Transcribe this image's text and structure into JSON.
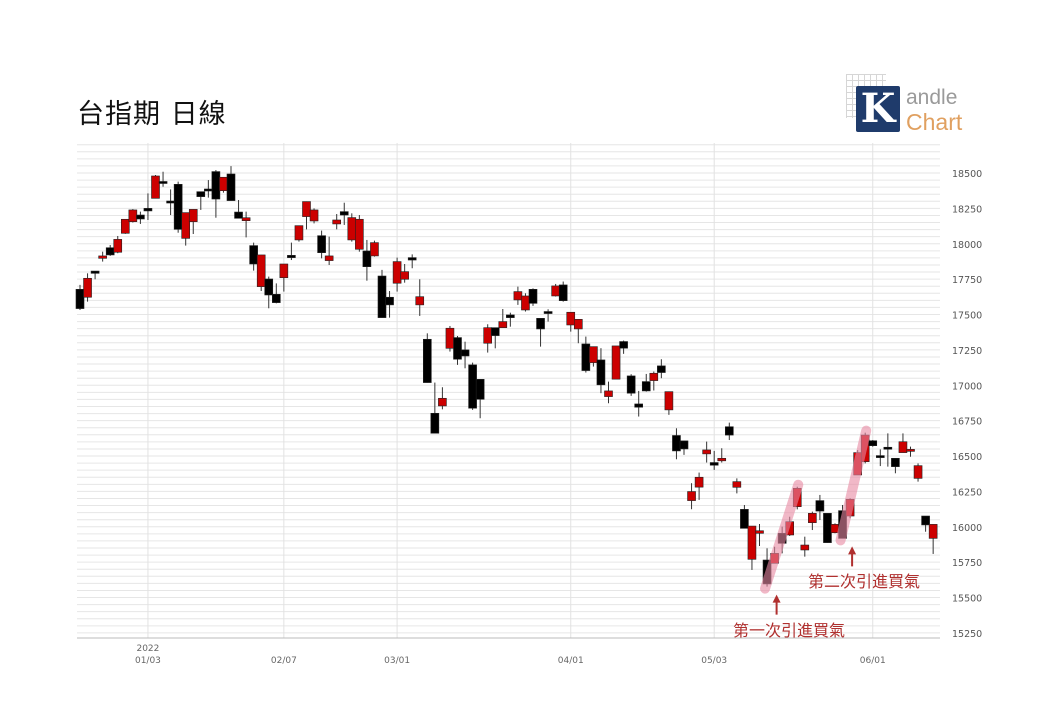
{
  "title": "台指期 日線",
  "logo": {
    "mark": "K",
    "line1": "andle",
    "line2": "Chart"
  },
  "colors": {
    "up": "#cc0000",
    "down": "#000000",
    "grid": "#e6e6e6",
    "annotation": "#b0302f",
    "highlight": "#e889a3"
  },
  "chart_data": {
    "type": "candlestick",
    "ylim": [
      15214,
      18712
    ],
    "yticks": [
      15250,
      15500,
      15750,
      16000,
      16250,
      16500,
      16750,
      17000,
      17250,
      17500,
      17750,
      18000,
      18250,
      18500
    ],
    "minor_grid_step": 50,
    "grid": true,
    "xticks": [
      {
        "index": 9,
        "year": "2022",
        "label": "01/03"
      },
      {
        "index": 27,
        "year": "",
        "label": "02/07"
      },
      {
        "index": 42,
        "year": "",
        "label": "03/01"
      },
      {
        "index": 65,
        "year": "",
        "label": "04/01"
      },
      {
        "index": 84,
        "year": "",
        "label": "05/03"
      },
      {
        "index": 105,
        "year": "",
        "label": "06/01"
      }
    ],
    "ohlc": [
      [
        17678,
        17709,
        17532,
        17542
      ],
      [
        17622,
        17791,
        17591,
        17756
      ],
      [
        17807,
        17807,
        17749,
        17791
      ],
      [
        17897,
        17944,
        17874,
        17914
      ],
      [
        17972,
        17991,
        17914,
        17921
      ],
      [
        17940,
        18055,
        17933,
        18031
      ],
      [
        18074,
        18173,
        18070,
        18173
      ],
      [
        18156,
        18245,
        18150,
        18239
      ],
      [
        18203,
        18227,
        18140,
        18175
      ],
      [
        18250,
        18356,
        18168,
        18232
      ],
      [
        18321,
        18486,
        18321,
        18479
      ],
      [
        18440,
        18509,
        18403,
        18437
      ],
      [
        18302,
        18384,
        18203,
        18300
      ],
      [
        18420,
        18439,
        18078,
        18102
      ],
      [
        18038,
        18220,
        17987,
        18220
      ],
      [
        18156,
        18243,
        18069,
        18243
      ],
      [
        18368,
        18368,
        18239,
        18333
      ],
      [
        18387,
        18450,
        18326,
        18385
      ],
      [
        18510,
        18521,
        18184,
        18316
      ],
      [
        18375,
        18470,
        18361,
        18470
      ],
      [
        18493,
        18549,
        18305,
        18305
      ],
      [
        18224,
        18309,
        18180,
        18180
      ],
      [
        18163,
        18227,
        18045,
        18184
      ],
      [
        17987,
        18008,
        17810,
        17857
      ],
      [
        17697,
        17921,
        17666,
        17921
      ],
      [
        17751,
        17768,
        17544,
        17638
      ],
      [
        17643,
        17720,
        17579,
        17584
      ],
      [
        17760,
        17857,
        17662,
        17857
      ],
      [
        17918,
        18008,
        17885,
        17902
      ],
      [
        18027,
        18128,
        18015,
        18128
      ],
      [
        18192,
        18298,
        18102,
        18298
      ],
      [
        18161,
        18250,
        18144,
        18239
      ],
      [
        18057,
        18093,
        17897,
        17937
      ],
      [
        17881,
        18050,
        17850,
        17914
      ],
      [
        18140,
        18210,
        18102,
        18168
      ],
      [
        18227,
        18290,
        18133,
        18203
      ],
      [
        18027,
        18215,
        18015,
        18185
      ],
      [
        17961,
        18203,
        17944,
        18173
      ],
      [
        17949,
        18027,
        17739,
        17838
      ],
      [
        17914,
        18022,
        17909,
        18008
      ],
      [
        17772,
        17815,
        17478,
        17478
      ],
      [
        17622,
        17666,
        17478,
        17568
      ],
      [
        17721,
        17902,
        17662,
        17874
      ],
      [
        17749,
        17857,
        17725,
        17803
      ],
      [
        17902,
        17925,
        17827,
        17885
      ],
      [
        17568,
        17749,
        17490,
        17626
      ],
      [
        17325,
        17367,
        17019,
        17019
      ],
      [
        16802,
        17019,
        16661,
        16661
      ],
      [
        16854,
        16986,
        16830,
        16908
      ],
      [
        17261,
        17419,
        17238,
        17403
      ],
      [
        17337,
        17348,
        17144,
        17184
      ],
      [
        17250,
        17308,
        17120,
        17207
      ],
      [
        17144,
        17160,
        16826,
        16838
      ],
      [
        17042,
        17042,
        16767,
        16901
      ],
      [
        17297,
        17431,
        17231,
        17407
      ],
      [
        17407,
        17407,
        17261,
        17351
      ],
      [
        17407,
        17539,
        17407,
        17450
      ],
      [
        17497,
        17513,
        17414,
        17478
      ],
      [
        17603,
        17697,
        17568,
        17662
      ],
      [
        17532,
        17650,
        17521,
        17631
      ],
      [
        17678,
        17685,
        17561,
        17579
      ],
      [
        17473,
        17473,
        17273,
        17398
      ],
      [
        17521,
        17537,
        17450,
        17509
      ],
      [
        17631,
        17716,
        17627,
        17702
      ],
      [
        17709,
        17733,
        17591,
        17598
      ],
      [
        17426,
        17516,
        17379,
        17516
      ],
      [
        17398,
        17466,
        17297,
        17466
      ],
      [
        17292,
        17344,
        17090,
        17104
      ],
      [
        17160,
        17273,
        17132,
        17273
      ],
      [
        17179,
        17262,
        16944,
        17003
      ],
      [
        16920,
        17026,
        16873,
        16960
      ],
      [
        17043,
        17278,
        17043,
        17278
      ],
      [
        17309,
        17316,
        17222,
        17262
      ],
      [
        17066,
        17078,
        16925,
        16944
      ],
      [
        16868,
        16960,
        16779,
        16845
      ],
      [
        17026,
        17080,
        16955,
        16960
      ],
      [
        17033,
        17097,
        16963,
        17085
      ],
      [
        17137,
        17184,
        17050,
        17090
      ],
      [
        16826,
        16955,
        16791,
        16955
      ],
      [
        16645,
        16696,
        16477,
        16536
      ],
      [
        16607,
        16607,
        16508,
        16550
      ],
      [
        16185,
        16308,
        16124,
        16249
      ],
      [
        16280,
        16383,
        16190,
        16350
      ],
      [
        16515,
        16602,
        16454,
        16543
      ],
      [
        16454,
        16536,
        16402,
        16435
      ],
      [
        16466,
        16555,
        16454,
        16484
      ],
      [
        16707,
        16736,
        16613,
        16648
      ],
      [
        16279,
        16342,
        16236,
        16319
      ],
      [
        16123,
        16154,
        15989,
        15989
      ],
      [
        15770,
        16005,
        15695,
        16005
      ],
      [
        15954,
        16020,
        15864,
        15972
      ],
      [
        15765,
        15848,
        15577,
        15596
      ],
      [
        15742,
        15859,
        15742,
        15812
      ],
      [
        15954,
        16001,
        15812,
        15883
      ],
      [
        15942,
        16071,
        15935,
        16036
      ],
      [
        16142,
        16283,
        16123,
        16272
      ],
      [
        15836,
        15930,
        15789,
        15871
      ],
      [
        16029,
        16107,
        15977,
        16095
      ],
      [
        16185,
        16225,
        16048,
        16111
      ],
      [
        16095,
        16095,
        15888,
        15888
      ],
      [
        15958,
        16024,
        15954,
        16017
      ],
      [
        16114,
        16154,
        15918,
        15918
      ],
      [
        16076,
        16201,
        16060,
        16194
      ],
      [
        16366,
        16542,
        16366,
        16524
      ],
      [
        16460,
        16665,
        16448,
        16648
      ],
      [
        16608,
        16613,
        16566,
        16573
      ],
      [
        16503,
        16547,
        16429,
        16500
      ],
      [
        16562,
        16660,
        16425,
        16559
      ],
      [
        16484,
        16484,
        16378,
        16425
      ],
      [
        16524,
        16660,
        16524,
        16601
      ],
      [
        16533,
        16566,
        16495,
        16547
      ],
      [
        16342,
        16448,
        16319,
        16432
      ],
      [
        16076,
        16076,
        15965,
        16013
      ],
      [
        15918,
        16017,
        15808,
        16017
      ]
    ],
    "annotations": [
      {
        "text": "第一次引進買氣",
        "from_index": 91,
        "to_index": 95
      },
      {
        "text": "第二次引進買氣",
        "from_index": 101,
        "to_index": 104
      }
    ]
  }
}
